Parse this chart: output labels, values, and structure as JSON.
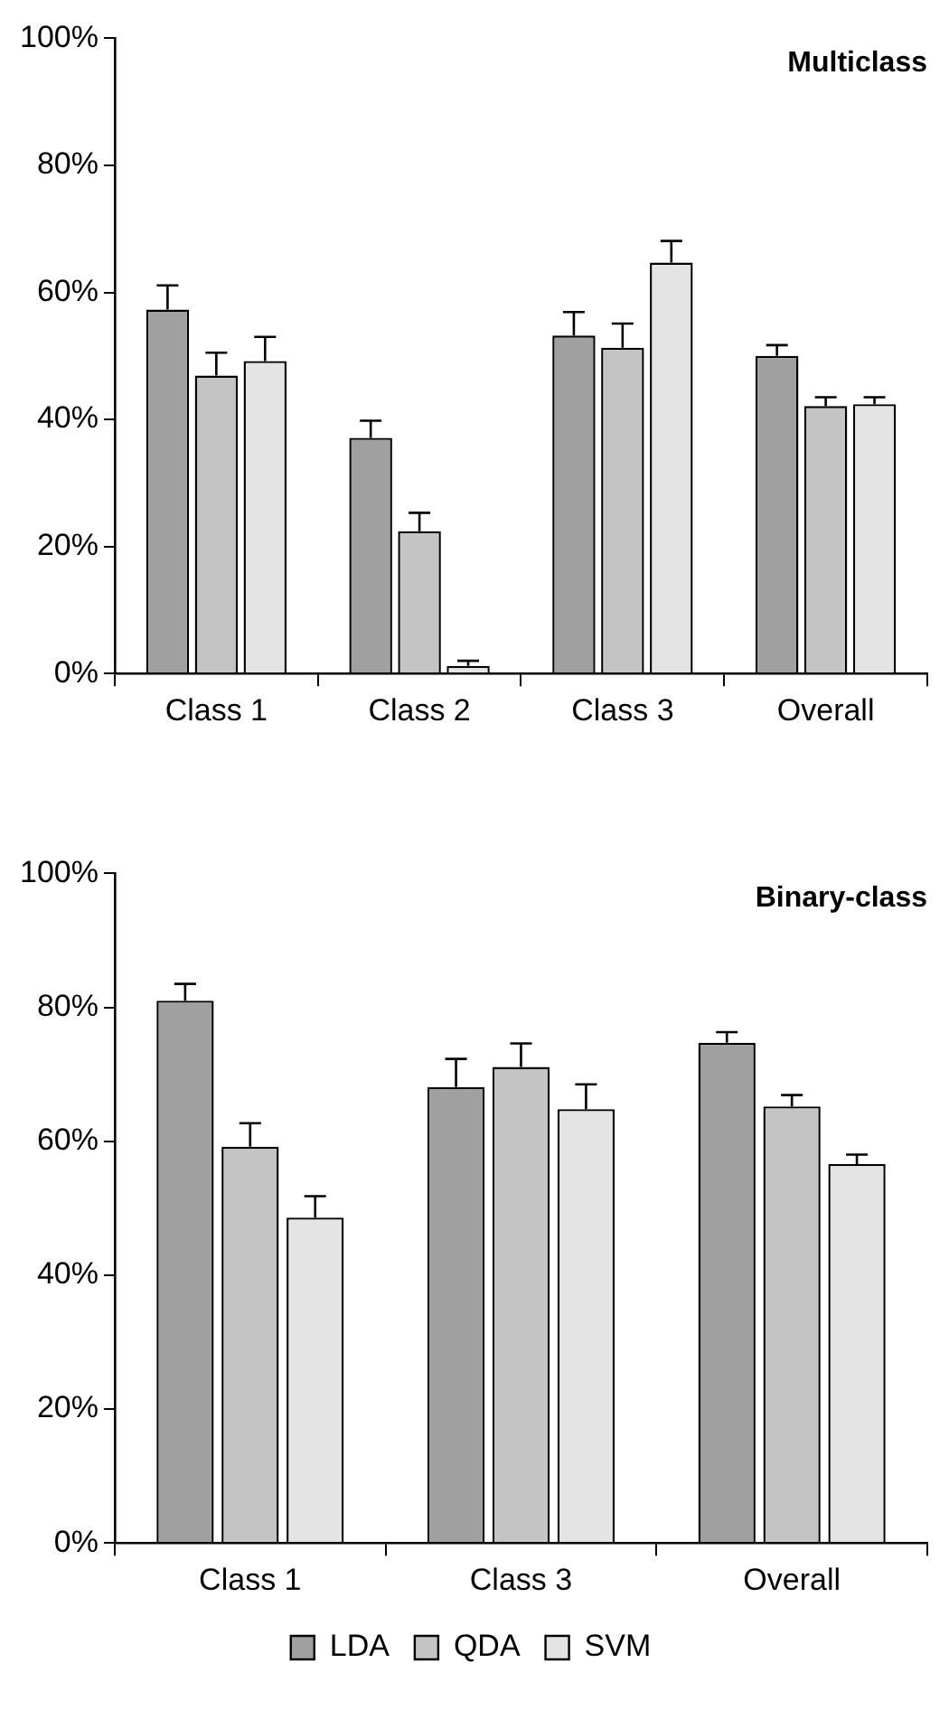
{
  "chart_data": [
    {
      "type": "bar",
      "title": "Multiclass",
      "categories": [
        "Class 1",
        "Class 2",
        "Class 3",
        "Overall"
      ],
      "series": [
        {
          "color": "#a0a0a0",
          "values": [
            57.3,
            37.1,
            53.2,
            50.0
          ],
          "errors": [
            [
              57.3,
              61.1
            ],
            [
              37.1,
              39.8
            ],
            [
              53.2,
              56.9
            ],
            [
              50.0,
              51.7
            ]
          ]
        },
        {
          "color": "#c4c4c4",
          "values": [
            46.9,
            22.4,
            51.3,
            42.1
          ],
          "errors": [
            [
              46.9,
              50.5
            ],
            [
              22.4,
              25.3
            ],
            [
              51.3,
              55.1
            ],
            [
              42.1,
              43.5
            ]
          ]
        },
        {
          "color": "#e4e4e4",
          "values": [
            49.2,
            1.2,
            64.7,
            42.4
          ],
          "errors": [
            [
              49.2,
              53.0
            ],
            [
              1.2,
              2.0
            ],
            [
              64.7,
              68.1
            ],
            [
              42.4,
              43.5
            ]
          ]
        }
      ],
      "ylim": [
        0,
        100
      ],
      "yticks": [
        {
          "value": 0,
          "label": "0%"
        },
        {
          "value": 20,
          "label": "20%"
        },
        {
          "value": 40,
          "label": "40%"
        },
        {
          "value": 60,
          "label": "60%"
        },
        {
          "value": 80,
          "label": "80%"
        },
        {
          "value": 100,
          "label": "100%"
        }
      ],
      "grid": false,
      "legend": false
    },
    {
      "type": "bar",
      "title": "Binary-class",
      "categories": [
        "Class 1",
        "Class 3",
        "Overall"
      ],
      "series": [
        {
          "name": "LDA",
          "color": "#a0a0a0",
          "values": [
            81.0,
            68.1,
            74.7
          ],
          "errors": [
            [
              81.0,
              83.5
            ],
            [
              68.1,
              72.3
            ],
            [
              74.7,
              76.3
            ]
          ]
        },
        {
          "name": "QDA",
          "color": "#c4c4c4",
          "values": [
            59.2,
            71.1,
            65.2
          ],
          "errors": [
            [
              59.2,
              62.7
            ],
            [
              71.1,
              74.6
            ],
            [
              65.2,
              66.9
            ]
          ]
        },
        {
          "name": "SVM",
          "color": "#e4e4e4",
          "values": [
            48.6,
            64.8,
            56.6
          ],
          "errors": [
            [
              48.6,
              51.8
            ],
            [
              64.8,
              68.5
            ],
            [
              56.6,
              58.0
            ]
          ]
        }
      ],
      "ylim": [
        0,
        100
      ],
      "yticks": [
        {
          "value": 0,
          "label": "0%"
        },
        {
          "value": 20,
          "label": "20%"
        },
        {
          "value": 40,
          "label": "40%"
        },
        {
          "value": 60,
          "label": "60%"
        },
        {
          "value": 80,
          "label": "80%"
        },
        {
          "value": 100,
          "label": "100%"
        }
      ],
      "grid": false,
      "legend": "bottom"
    }
  ]
}
